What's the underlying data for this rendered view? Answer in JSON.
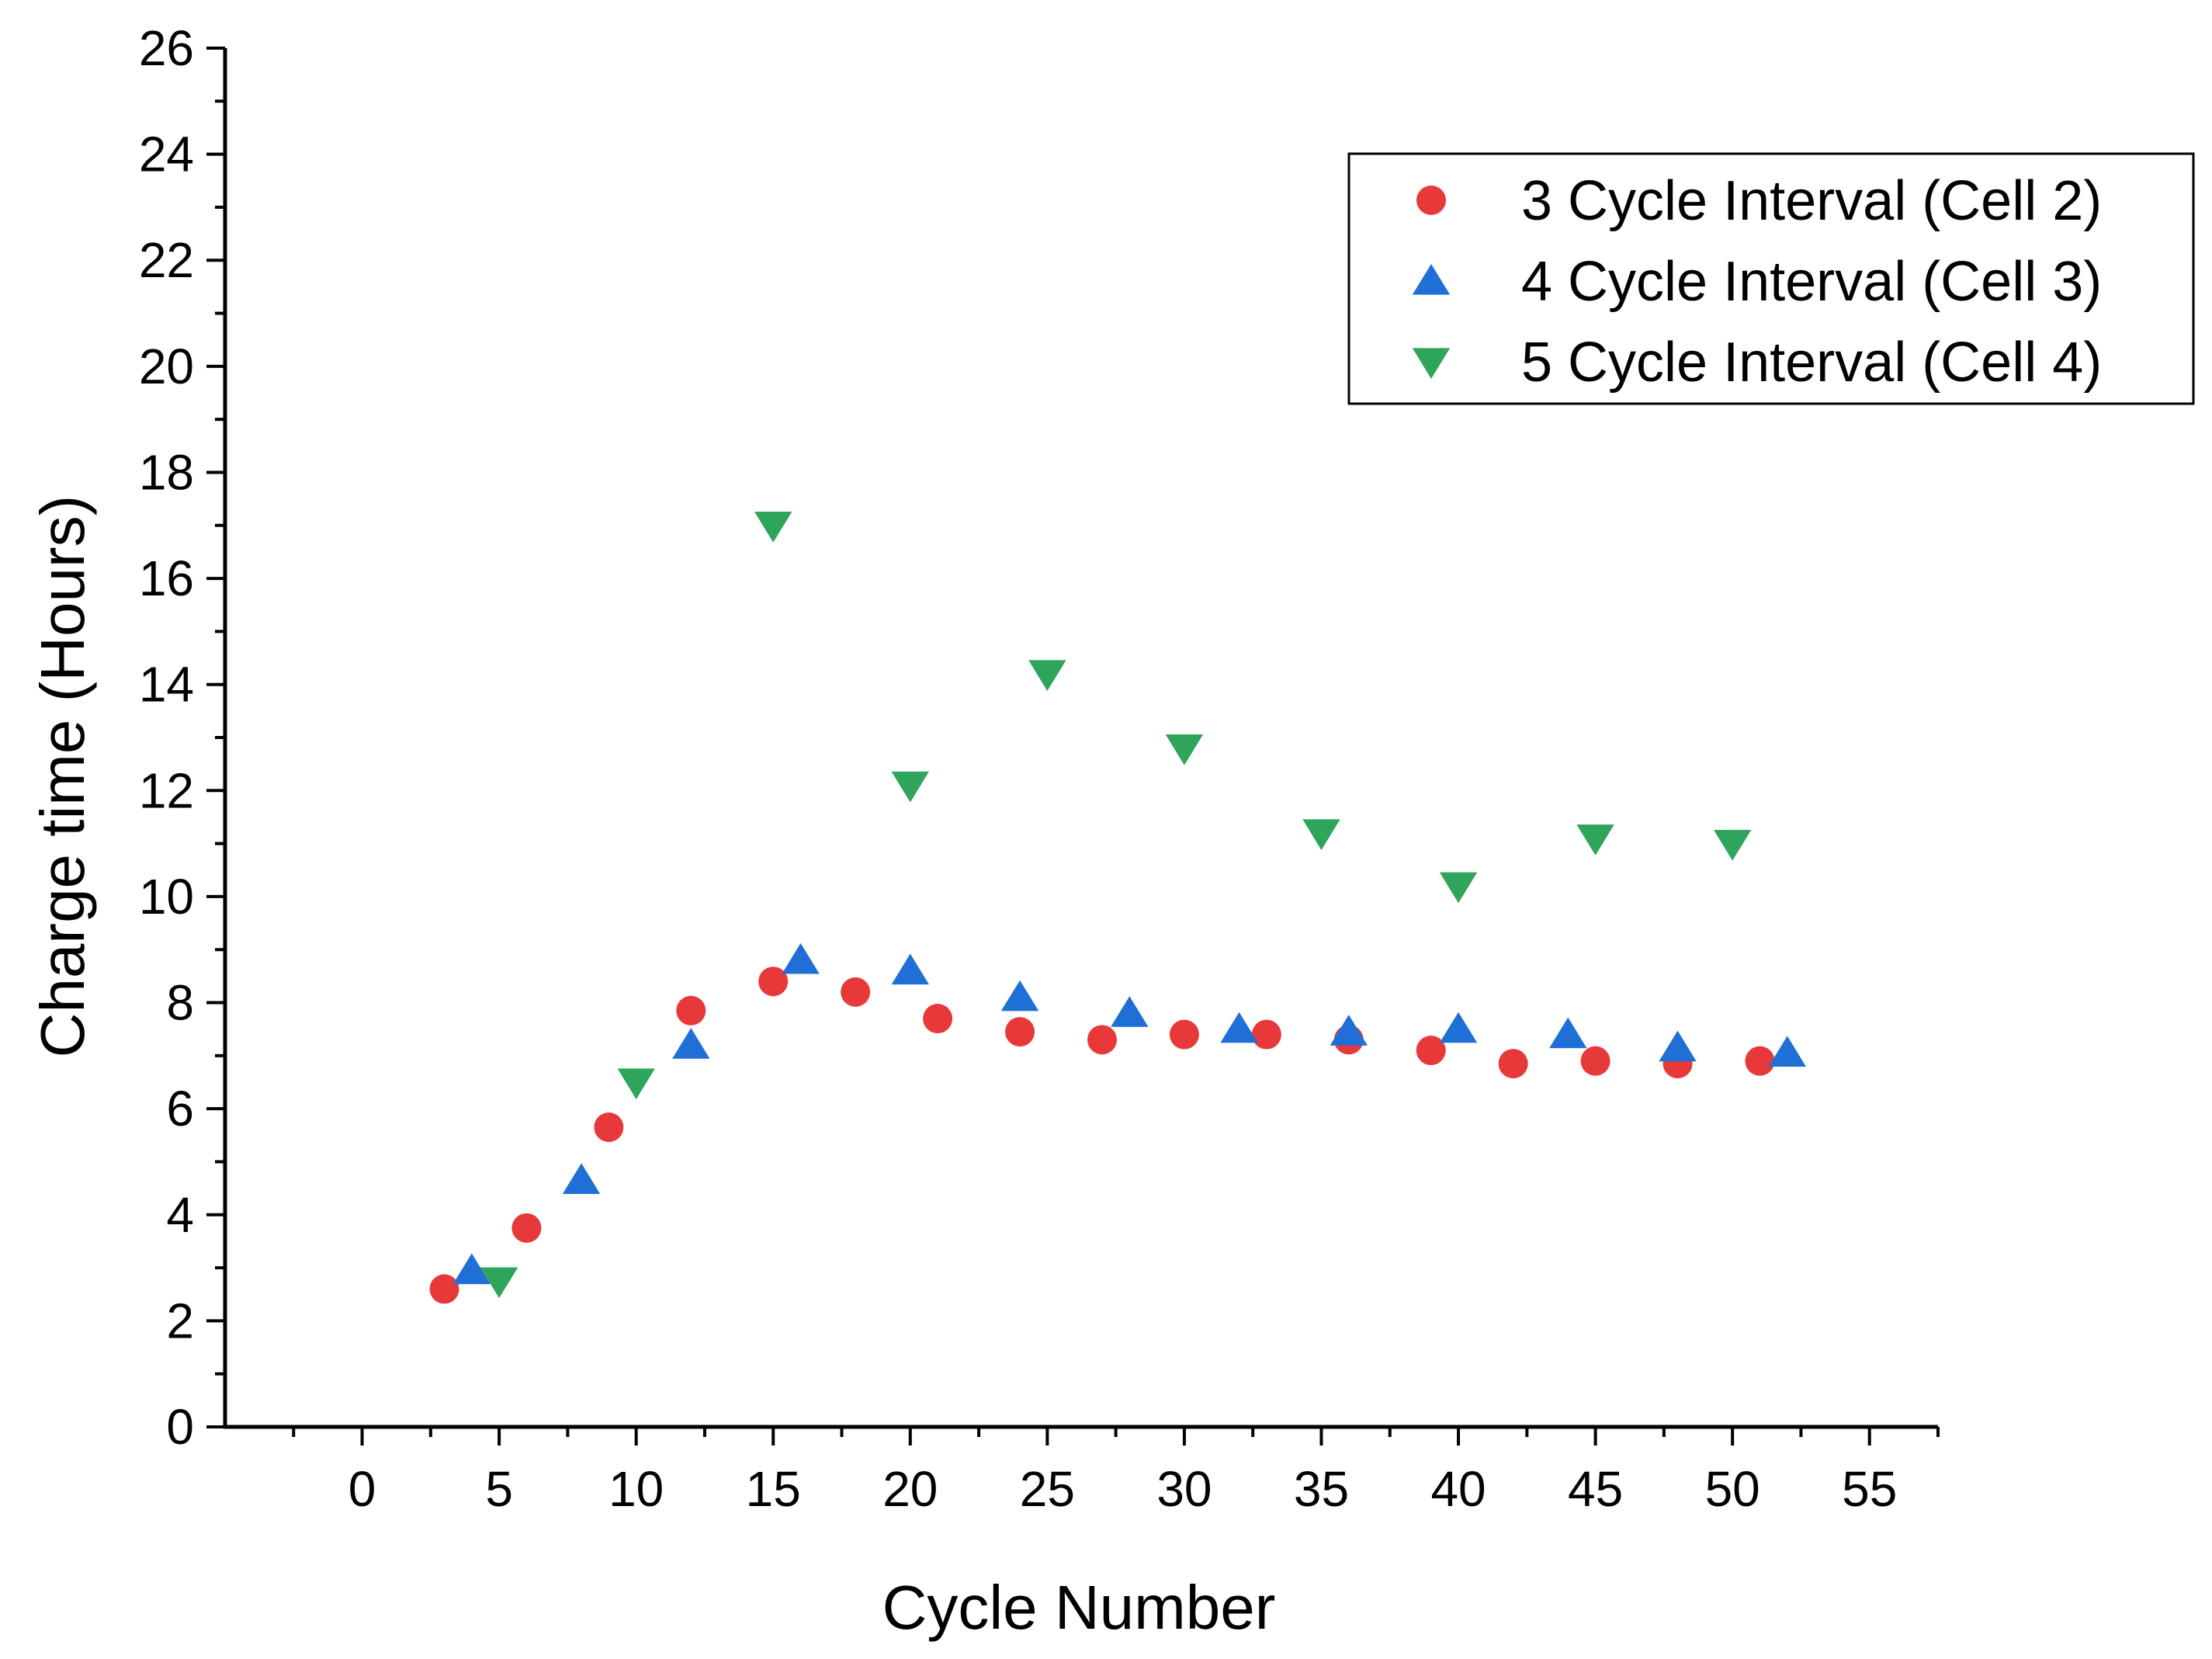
{
  "chart_data": {
    "type": "scatter",
    "xlabel": "Cycle Number",
    "ylabel": "Charge time (Hours)",
    "xlim": [
      -5,
      57.5
    ],
    "ylim": [
      0,
      26
    ],
    "x_ticks": [
      0,
      5,
      10,
      15,
      20,
      25,
      30,
      35,
      40,
      45,
      50,
      55
    ],
    "y_ticks": [
      0,
      2,
      4,
      6,
      8,
      10,
      12,
      14,
      16,
      18,
      20,
      22,
      24,
      26
    ],
    "x_tick_labels": [
      "0",
      "5",
      "10",
      "15",
      "20",
      "25",
      "30",
      "35",
      "40",
      "45",
      "50",
      "55"
    ],
    "y_tick_labels": [
      "0",
      "2",
      "4",
      "6",
      "8",
      "10",
      "12",
      "14",
      "16",
      "18",
      "20",
      "22",
      "24",
      "26"
    ],
    "grid": false,
    "legend_position": "top-right",
    "series": [
      {
        "name": "3 Cycle Interval (Cell 2)",
        "marker": "circle",
        "color": "#e8393a",
        "points": [
          [
            3,
            2.6
          ],
          [
            6,
            3.75
          ],
          [
            9,
            5.65
          ],
          [
            12,
            7.85
          ],
          [
            15,
            8.4
          ],
          [
            18,
            8.2
          ],
          [
            21,
            7.7
          ],
          [
            24,
            7.45
          ],
          [
            27,
            7.3
          ],
          [
            30,
            7.4
          ],
          [
            33,
            7.4
          ],
          [
            36,
            7.3
          ],
          [
            39,
            7.1
          ],
          [
            42,
            6.85
          ],
          [
            45,
            6.9
          ],
          [
            48,
            6.85
          ],
          [
            51,
            6.9
          ]
        ]
      },
      {
        "name": "4 Cycle Interval (Cell 3)",
        "marker": "triangle-up",
        "color": "#1f6fd6",
        "points": [
          [
            4,
            2.95
          ],
          [
            8,
            4.65
          ],
          [
            12,
            7.2
          ],
          [
            16,
            8.8
          ],
          [
            20,
            8.6
          ],
          [
            24,
            8.1
          ],
          [
            28,
            7.8
          ],
          [
            32,
            7.5
          ],
          [
            36,
            7.45
          ],
          [
            40,
            7.5
          ],
          [
            44,
            7.4
          ],
          [
            48,
            7.15
          ],
          [
            52,
            7.05
          ]
        ]
      },
      {
        "name": "5 Cycle Interval (Cell 4)",
        "marker": "triangle-down",
        "color": "#2ea55a",
        "points": [
          [
            5,
            2.75
          ],
          [
            10,
            6.5
          ],
          [
            15,
            17.0
          ],
          [
            20,
            12.1
          ],
          [
            25,
            14.2
          ],
          [
            30,
            12.8
          ],
          [
            35,
            11.2
          ],
          [
            40,
            10.2
          ],
          [
            45,
            11.1
          ],
          [
            50,
            11.0
          ]
        ]
      }
    ]
  }
}
